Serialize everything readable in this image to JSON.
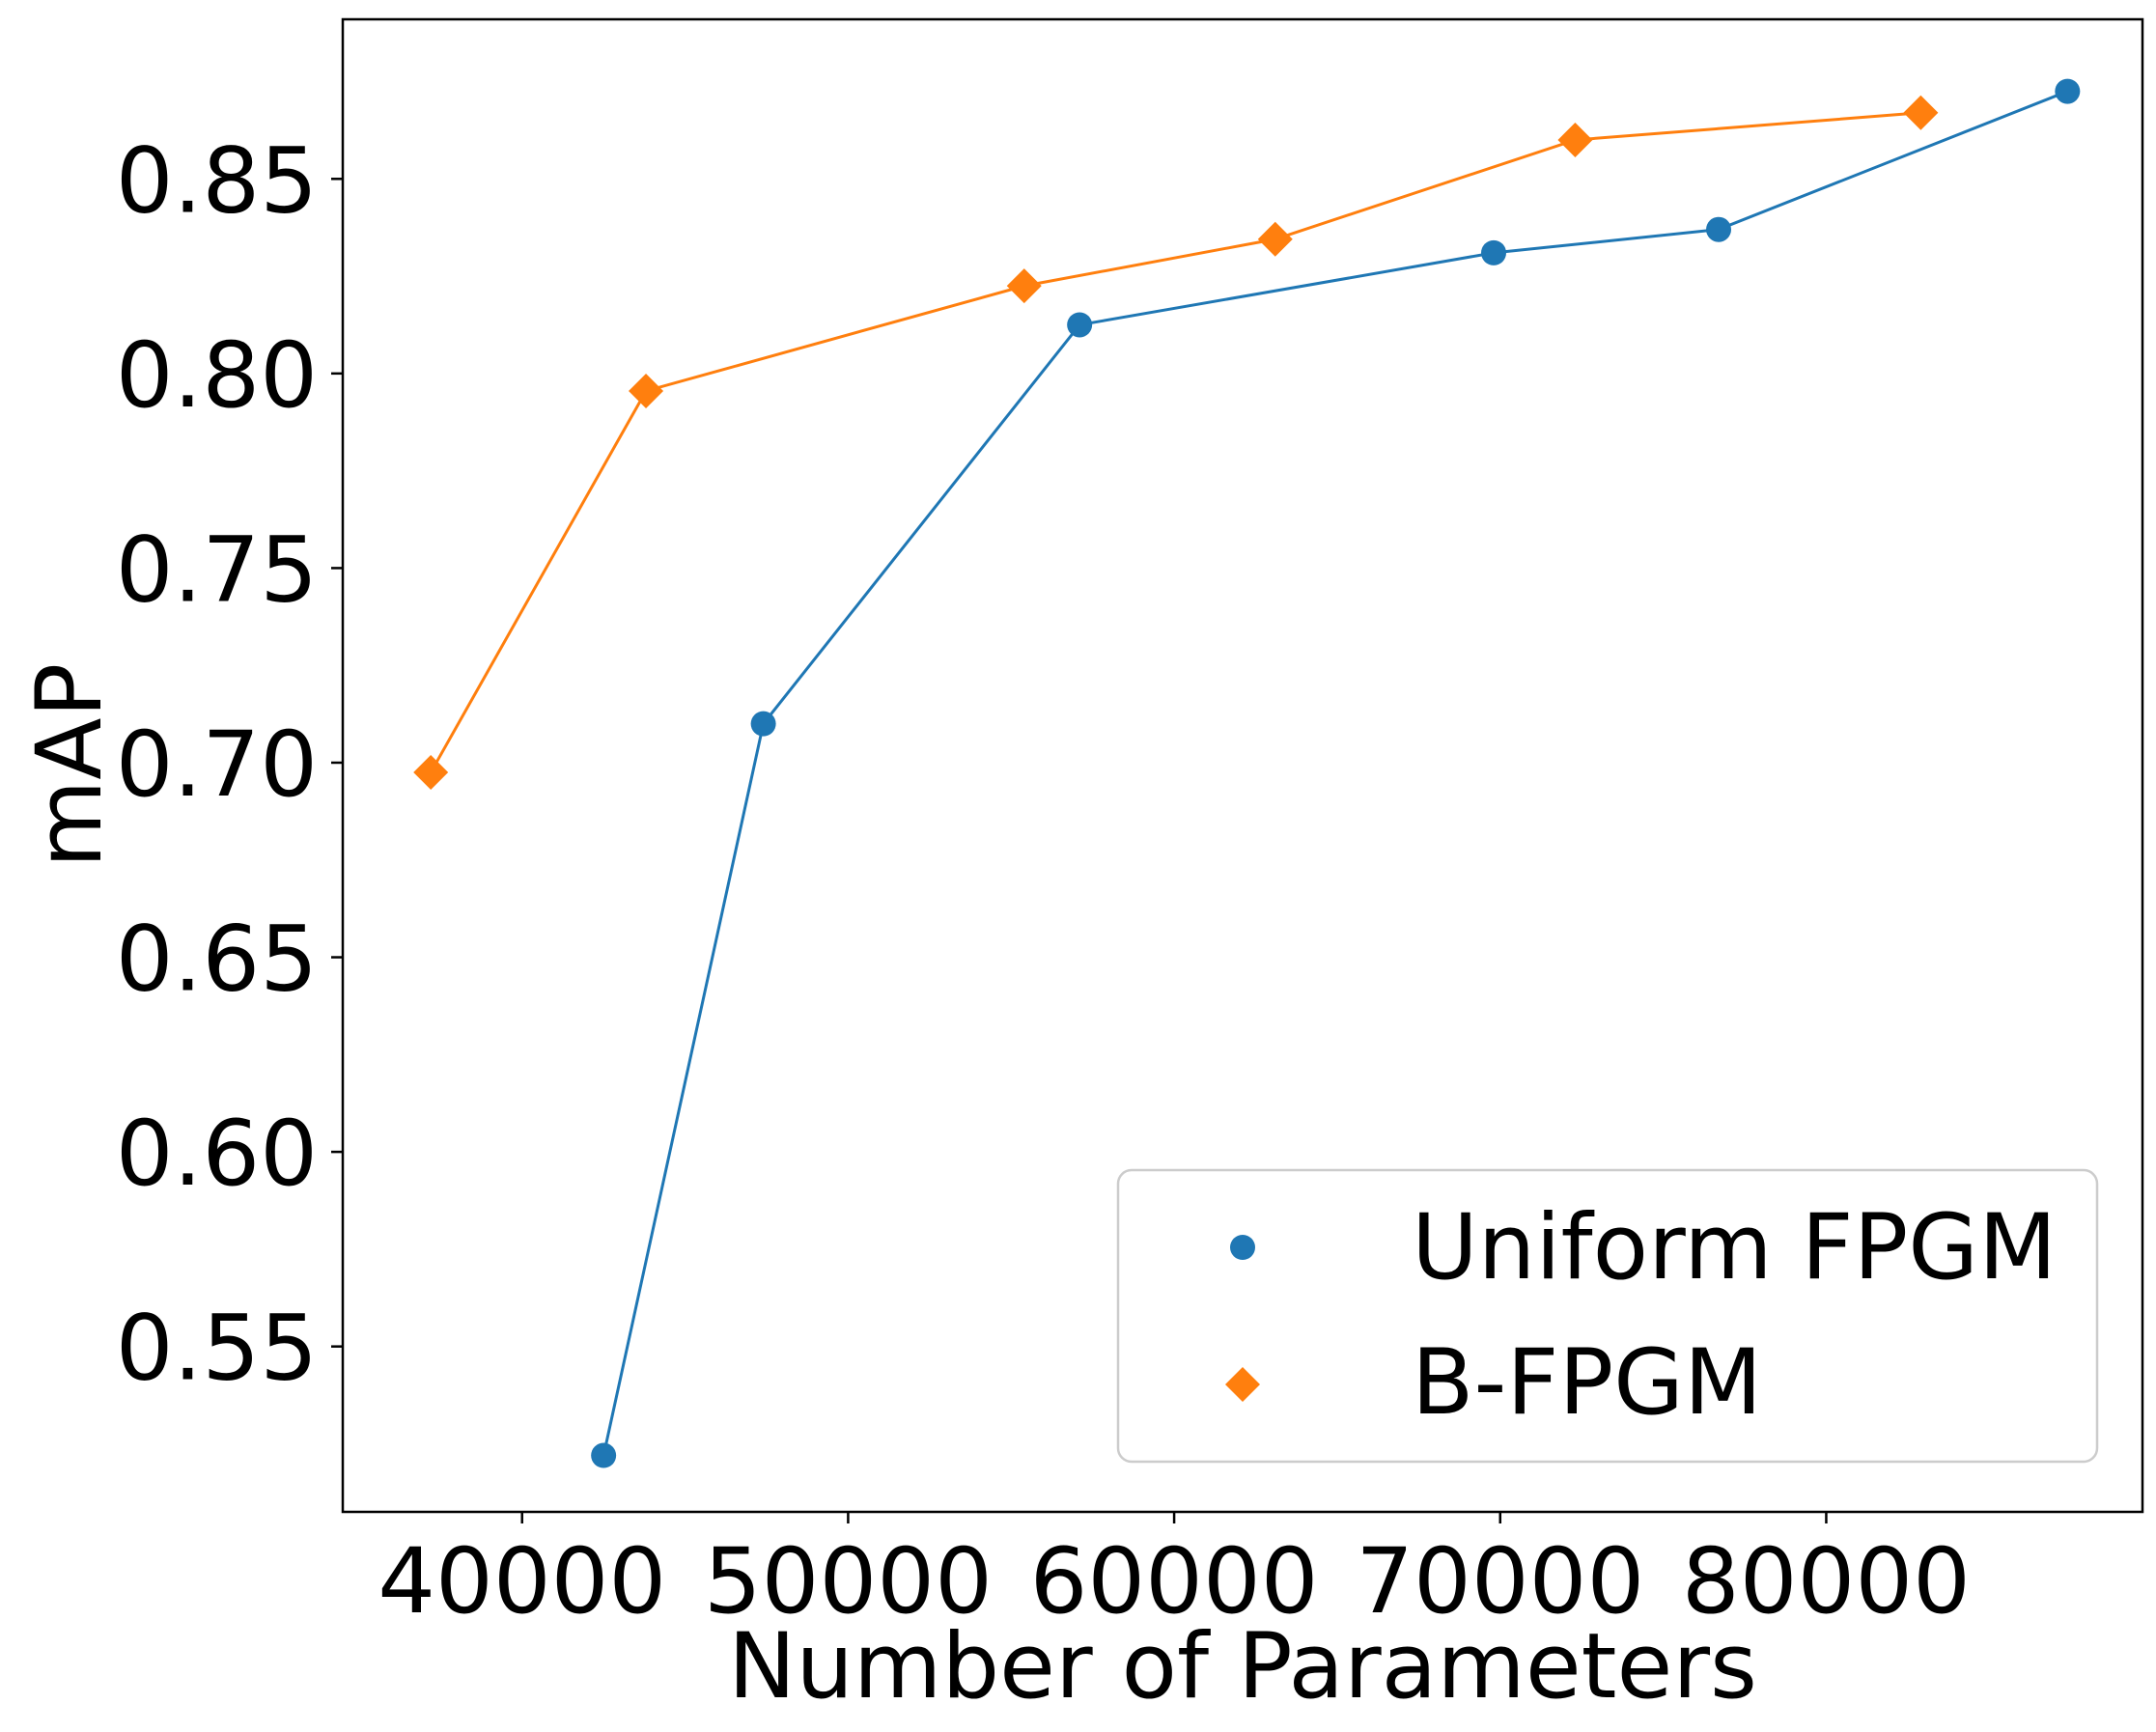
{
  "chart_data": {
    "type": "line",
    "title": "",
    "xlabel": "Number of Parameters",
    "ylabel": "mAP",
    "xlim": [
      34500,
      89700
    ],
    "ylim": [
      0.5075,
      0.891
    ],
    "xticks": [
      40000,
      50000,
      60000,
      70000,
      80000
    ],
    "yticks": [
      0.55,
      0.6,
      0.65,
      0.7,
      0.75,
      0.8,
      0.85
    ],
    "xtick_labels": [
      "40000",
      "50000",
      "60000",
      "70000",
      "80000"
    ],
    "ytick_labels": [
      "0.55",
      "0.60",
      "0.65",
      "0.70",
      "0.75",
      "0.80",
      "0.85"
    ],
    "grid": false,
    "legend_position": "lower-right",
    "series": [
      {
        "name": "Uniform FPGM",
        "color": "#1f77b4",
        "marker": "circle",
        "x": [
          42500,
          47400,
          57100,
          69800,
          76700,
          87400
        ],
        "y": [
          0.522,
          0.71,
          0.8125,
          0.831,
          0.837,
          0.8725
        ]
      },
      {
        "name": "B-FPGM",
        "color": "#ff7f0e",
        "marker": "diamond",
        "x": [
          37200,
          43800,
          55400,
          63100,
          72300,
          82900
        ],
        "y": [
          0.6975,
          0.7955,
          0.8225,
          0.8345,
          0.86,
          0.867
        ]
      }
    ]
  }
}
